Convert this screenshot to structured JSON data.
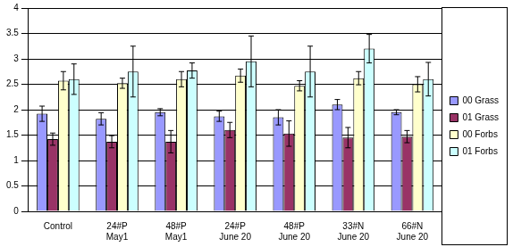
{
  "chart_data": {
    "type": "bar",
    "categories": [
      "Control",
      "24#P May1",
      "48#P May1",
      "24#P June 20",
      "48#P June 20",
      "33#N June 20",
      "66#N June 20"
    ],
    "series": [
      {
        "name": "00 Grass",
        "color": "#9999ff",
        "values": [
          1.92,
          1.82,
          1.95,
          1.87,
          1.85,
          2.1,
          1.95
        ],
        "errors": [
          0.15,
          0.12,
          0.07,
          0.1,
          0.15,
          0.1,
          0.05
        ]
      },
      {
        "name": "01 Grass",
        "color": "#993366",
        "values": [
          1.42,
          1.37,
          1.37,
          1.6,
          1.53,
          1.45,
          1.47
        ],
        "errors": [
          0.12,
          0.12,
          0.22,
          0.15,
          0.25,
          0.2,
          0.12
        ]
      },
      {
        "name": "00 Forbs",
        "color": "#ffffcc",
        "values": [
          2.57,
          2.52,
          2.6,
          2.67,
          2.47,
          2.62,
          2.5
        ],
        "errors": [
          0.18,
          0.1,
          0.15,
          0.13,
          0.1,
          0.13,
          0.15
        ]
      },
      {
        "name": "01 Forbs",
        "color": "#ccffff",
        "values": [
          2.6,
          2.75,
          2.77,
          2.95,
          2.75,
          3.2,
          2.6
        ],
        "errors": [
          0.3,
          0.5,
          0.15,
          0.5,
          0.5,
          0.28,
          0.33
        ]
      }
    ],
    "ylim": [
      0,
      4
    ],
    "yticks": [
      0,
      0.5,
      1,
      1.5,
      2,
      2.5,
      3,
      3.5,
      4
    ],
    "grid": true,
    "legend": "right"
  }
}
